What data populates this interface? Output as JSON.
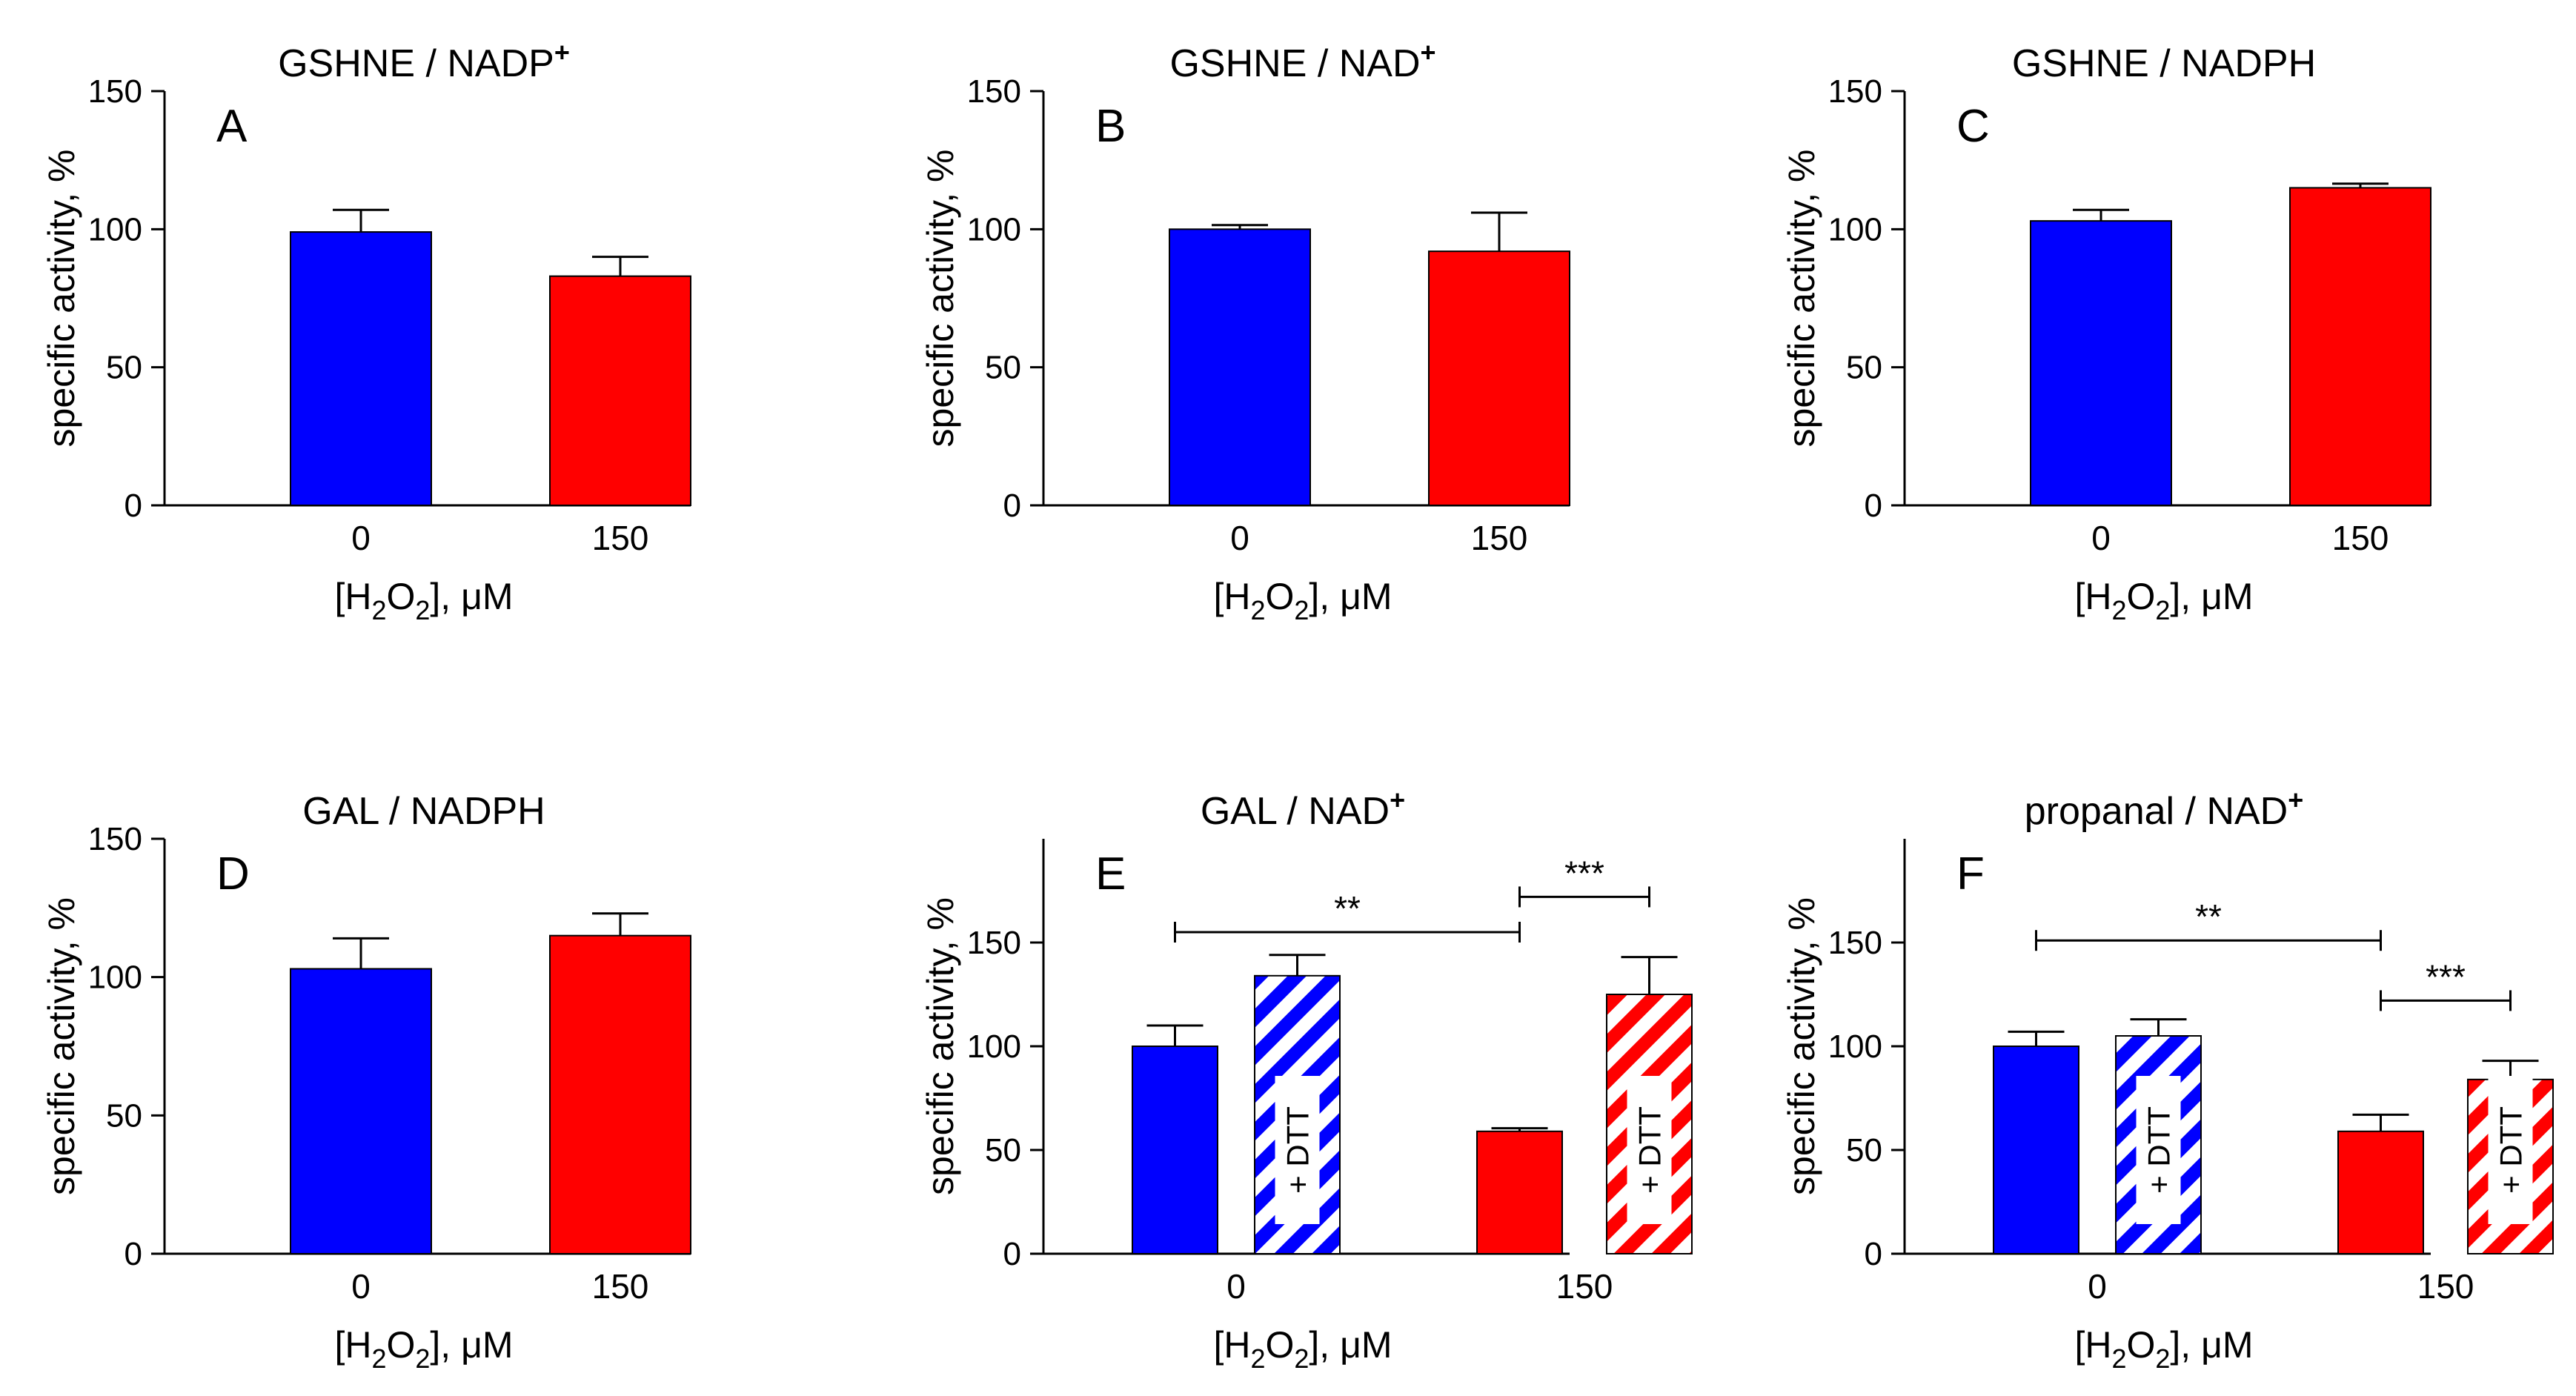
{
  "figure": {
    "colors": {
      "control": "#0000ff",
      "treated": "#ff0000",
      "axis": "#000000",
      "label_box": "#ffffff"
    },
    "hatch_label": "+ DTT"
  },
  "chart_data": [
    {
      "type": "bar",
      "panel": "A",
      "title": "GSHNE / NADP",
      "title_superscript": "+",
      "ylabel": "specific activity, %",
      "xlabel": "[H2O2], μM",
      "xlabel_parts": [
        "[H",
        "2",
        "O",
        "2",
        "], μM"
      ],
      "categories": [
        "0",
        "150"
      ],
      "ylim": [
        0,
        150
      ],
      "yticks": [
        0,
        50,
        100,
        150
      ],
      "grid": false,
      "bars": [
        {
          "category": "0",
          "value": 99,
          "error": 8,
          "fill": "solid",
          "color": "#0000ff"
        },
        {
          "category": "150",
          "value": 83,
          "error": 7,
          "fill": "solid",
          "color": "#ff0000"
        }
      ],
      "significance": []
    },
    {
      "type": "bar",
      "panel": "B",
      "title": "GSHNE / NAD",
      "title_superscript": "+",
      "ylabel": "specific activity, %",
      "xlabel": "[H2O2], μM",
      "xlabel_parts": [
        "[H",
        "2",
        "O",
        "2",
        "], μM"
      ],
      "categories": [
        "0",
        "150"
      ],
      "ylim": [
        0,
        150
      ],
      "yticks": [
        0,
        50,
        100,
        150
      ],
      "grid": false,
      "bars": [
        {
          "category": "0",
          "value": 100,
          "error": 1.5,
          "fill": "solid",
          "color": "#0000ff"
        },
        {
          "category": "150",
          "value": 92,
          "error": 14,
          "fill": "solid",
          "color": "#ff0000"
        }
      ],
      "significance": []
    },
    {
      "type": "bar",
      "panel": "C",
      "title": "GSHNE / NADPH",
      "title_superscript": "",
      "ylabel": "specific activity, %",
      "xlabel": "[H2O2], μM",
      "xlabel_parts": [
        "[H",
        "2",
        "O",
        "2",
        "], μM"
      ],
      "categories": [
        "0",
        "150"
      ],
      "ylim": [
        0,
        150
      ],
      "yticks": [
        0,
        50,
        100,
        150
      ],
      "grid": false,
      "bars": [
        {
          "category": "0",
          "value": 103,
          "error": 4,
          "fill": "solid",
          "color": "#0000ff"
        },
        {
          "category": "150",
          "value": 115,
          "error": 1.5,
          "fill": "solid",
          "color": "#ff0000"
        }
      ],
      "significance": []
    },
    {
      "type": "bar",
      "panel": "D",
      "title": "GAL / NADPH",
      "title_superscript": "",
      "ylabel": "specific activity, %",
      "xlabel": "[H2O2], μM",
      "xlabel_parts": [
        "[H",
        "2",
        "O",
        "2",
        "], μM"
      ],
      "categories": [
        "0",
        "150"
      ],
      "ylim": [
        0,
        150
      ],
      "yticks": [
        0,
        50,
        100,
        150
      ],
      "grid": false,
      "bars": [
        {
          "category": "0",
          "value": 103,
          "error": 11,
          "fill": "solid",
          "color": "#0000ff"
        },
        {
          "category": "150",
          "value": 115,
          "error": 8,
          "fill": "solid",
          "color": "#ff0000"
        }
      ],
      "significance": []
    },
    {
      "type": "bar",
      "panel": "E",
      "title": "GAL / NAD",
      "title_superscript": "+",
      "ylabel": "specific activity, %",
      "xlabel": "[H2O2], μM",
      "xlabel_parts": [
        "[H",
        "2",
        "O",
        "2",
        "], μM"
      ],
      "categories": [
        "0",
        "150"
      ],
      "ylim": [
        0,
        200
      ],
      "yticks": [
        0,
        50,
        100,
        150
      ],
      "grid": false,
      "bars": [
        {
          "category": "0",
          "value": 100,
          "error": 10,
          "fill": "solid",
          "color": "#0000ff"
        },
        {
          "category": "0",
          "value": 134,
          "error": 10,
          "fill": "hatched",
          "color": "#0000ff",
          "label": "+ DTT"
        },
        {
          "category": "150",
          "value": 59,
          "error": 1.5,
          "fill": "solid",
          "color": "#ff0000"
        },
        {
          "category": "150",
          "value": 125,
          "error": 18,
          "fill": "hatched",
          "color": "#ff0000",
          "label": "+ DTT"
        }
      ],
      "significance": [
        {
          "from_bar": 0,
          "to_bar": 2,
          "y": 155,
          "label": "**"
        },
        {
          "from_bar": 2,
          "to_bar": 3,
          "y": 172,
          "label": "***"
        }
      ]
    },
    {
      "type": "bar",
      "panel": "F",
      "title": "propanal / NAD",
      "title_superscript": "+",
      "ylabel": "specific activity, %",
      "xlabel": "[H2O2], μM",
      "xlabel_parts": [
        "[H",
        "2",
        "O",
        "2",
        "], μM"
      ],
      "categories": [
        "0",
        "150"
      ],
      "ylim": [
        0,
        200
      ],
      "yticks": [
        0,
        50,
        100,
        150
      ],
      "grid": false,
      "bars": [
        {
          "category": "0",
          "value": 100,
          "error": 7,
          "fill": "solid",
          "color": "#0000ff"
        },
        {
          "category": "0",
          "value": 105,
          "error": 8,
          "fill": "hatched",
          "color": "#0000ff",
          "label": "+ DTT"
        },
        {
          "category": "150",
          "value": 59,
          "error": 8,
          "fill": "solid",
          "color": "#ff0000"
        },
        {
          "category": "150",
          "value": 84,
          "error": 9,
          "fill": "hatched",
          "color": "#ff0000",
          "label": "+ DTT"
        }
      ],
      "significance": [
        {
          "from_bar": 0,
          "to_bar": 2,
          "y": 151,
          "label": "**"
        },
        {
          "from_bar": 2,
          "to_bar": 3,
          "y": 122,
          "label": "***"
        }
      ]
    }
  ]
}
